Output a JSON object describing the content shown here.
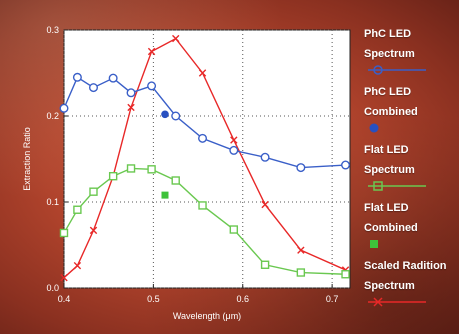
{
  "chart_data": {
    "type": "line",
    "title": "",
    "xlabel": "Wavelength (μm)",
    "ylabel": "Extraction Ratio",
    "xlim": [
      0.4,
      0.72
    ],
    "ylim": [
      0.0,
      0.3
    ],
    "xticks": [
      0.4,
      0.5,
      0.6,
      0.7
    ],
    "xtick_labels": [
      "0.4",
      "0.5",
      "0.6",
      "0.7"
    ],
    "yticks": [
      0.0,
      0.1,
      0.2,
      0.3
    ],
    "ytick_labels": [
      "0.0",
      "0.1",
      "0.2",
      "0.3"
    ],
    "grid": "dotted",
    "legend_position": "right",
    "series": [
      {
        "name": "PhC LED Spectrum",
        "kind": "line",
        "marker": "open-circle",
        "color": "#3a5fc8",
        "x": [
          0.4,
          0.415,
          0.433,
          0.455,
          0.475,
          0.498,
          0.525,
          0.555,
          0.59,
          0.625,
          0.665,
          0.715
        ],
        "y": [
          0.209,
          0.245,
          0.233,
          0.244,
          0.227,
          0.235,
          0.2,
          0.174,
          0.16,
          0.152,
          0.14,
          0.143
        ]
      },
      {
        "name": "PhC LED Combined",
        "kind": "point",
        "marker": "filled-circle",
        "color": "#2850c0",
        "x": [
          0.513
        ],
        "y": [
          0.202
        ]
      },
      {
        "name": "Flat LED Spectrum",
        "kind": "line",
        "marker": "open-square",
        "color": "#6ac850",
        "x": [
          0.4,
          0.415,
          0.433,
          0.455,
          0.475,
          0.498,
          0.525,
          0.555,
          0.59,
          0.625,
          0.665,
          0.715
        ],
        "y": [
          0.064,
          0.091,
          0.112,
          0.13,
          0.139,
          0.138,
          0.125,
          0.096,
          0.068,
          0.027,
          0.018,
          0.016
        ]
      },
      {
        "name": "Flat LED Combined",
        "kind": "point",
        "marker": "filled-square",
        "color": "#3ec23a",
        "x": [
          0.513
        ],
        "y": [
          0.108
        ]
      },
      {
        "name": "Scaled Radition Spectrum",
        "kind": "line",
        "marker": "x",
        "color": "#e82828",
        "x": [
          0.4,
          0.415,
          0.433,
          0.455,
          0.475,
          0.498,
          0.525,
          0.555,
          0.59,
          0.625,
          0.665,
          0.715
        ],
        "y": [
          0.012,
          0.026,
          0.067,
          0.13,
          0.21,
          0.275,
          0.29,
          0.25,
          0.172,
          0.097,
          0.044,
          0.021
        ]
      }
    ]
  },
  "legend": [
    {
      "line1": "PhC LED",
      "line2": "Spectrum",
      "swatch": "open-circle-line",
      "color": "#3a5fc8"
    },
    {
      "line1": "PhC LED",
      "line2": "Combined",
      "swatch": "filled-circle",
      "color": "#2850c0"
    },
    {
      "line1": "Flat LED",
      "line2": "Spectrum",
      "swatch": "open-square-line",
      "color": "#6ac850"
    },
    {
      "line1": "Flat LED",
      "line2": "Combined",
      "swatch": "filled-square",
      "color": "#3ec23a"
    },
    {
      "line1": "Scaled Radition",
      "line2": "Spectrum",
      "swatch": "x-line",
      "color": "#e82828"
    }
  ]
}
